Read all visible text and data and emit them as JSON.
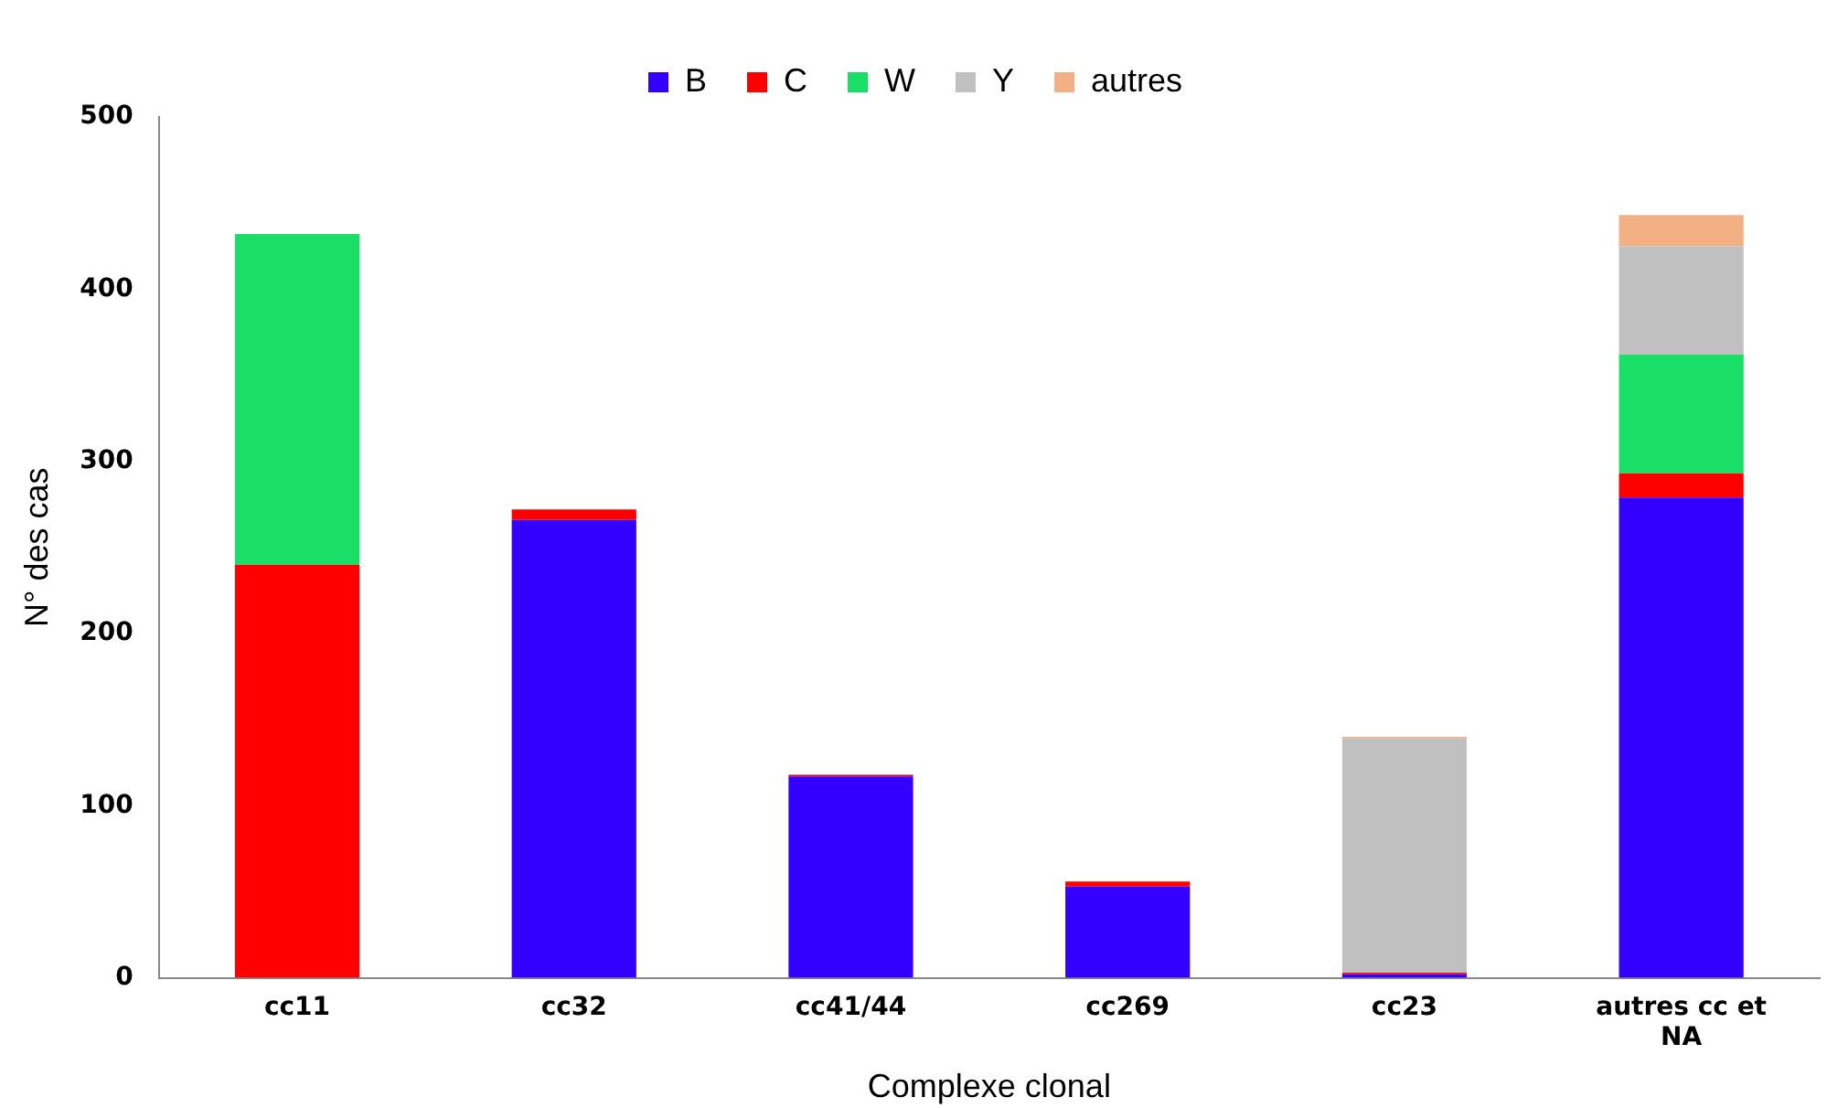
{
  "chart_data": {
    "type": "bar",
    "stacked": true,
    "xlabel": "Complexe clonal",
    "ylabel": "N° des cas",
    "categories": [
      "cc11",
      "cc32",
      "cc41/44",
      "cc269",
      "cc23",
      "autres cc et NA"
    ],
    "series": [
      {
        "name": "B",
        "color": "#3300ff",
        "values": [
          0,
          266,
          117,
          53,
          2,
          279
        ]
      },
      {
        "name": "C",
        "color": "#ff0000",
        "values": [
          240,
          6,
          1,
          3,
          1,
          14
        ]
      },
      {
        "name": "W",
        "color": "#19df67",
        "values": [
          192,
          0,
          0,
          0,
          0,
          69
        ]
      },
      {
        "name": "Y",
        "color": "#c0c0c0",
        "values": [
          0,
          0,
          0,
          0,
          136,
          63
        ]
      },
      {
        "name": "autres",
        "color": "#f2b084",
        "values": [
          0,
          0,
          0,
          0,
          1,
          18
        ]
      }
    ],
    "ylim": [
      0,
      500
    ],
    "yticks": [
      0,
      100,
      200,
      300,
      400,
      500
    ],
    "grid": false,
    "legend": "top"
  }
}
